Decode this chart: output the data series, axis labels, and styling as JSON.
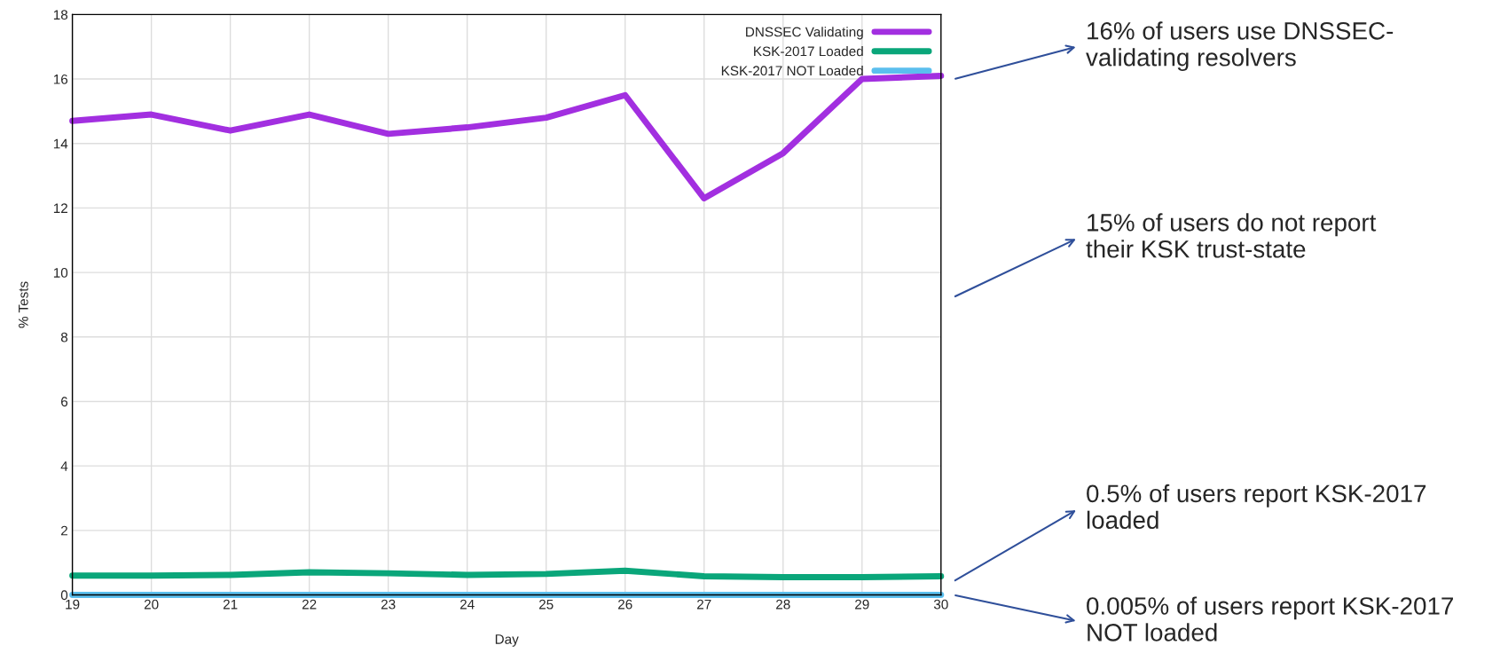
{
  "chart_data": {
    "type": "line",
    "xlabel": "Day",
    "ylabel": "% Tests",
    "x": [
      19,
      20,
      21,
      22,
      23,
      24,
      25,
      26,
      27,
      28,
      29,
      30
    ],
    "series": [
      {
        "name": "DNSSEC Validating",
        "color": "#a22fe0",
        "values": [
          14.7,
          14.9,
          14.4,
          14.9,
          14.3,
          14.5,
          14.8,
          15.5,
          12.3,
          13.7,
          16.0,
          16.1
        ]
      },
      {
        "name": "KSK-2017 Loaded",
        "color": "#0aa67a",
        "values": [
          0.6,
          0.6,
          0.62,
          0.7,
          0.67,
          0.62,
          0.65,
          0.75,
          0.58,
          0.55,
          0.55,
          0.58
        ]
      },
      {
        "name": "KSK-2017 NOT Loaded",
        "color": "#5bbfee",
        "values": [
          0,
          0,
          0,
          0,
          0,
          0,
          0,
          0,
          0,
          0,
          0,
          0
        ]
      }
    ],
    "xlim": [
      19,
      30
    ],
    "ylim": [
      0,
      18
    ],
    "xticks": [
      19,
      20,
      21,
      22,
      23,
      24,
      25,
      26,
      27,
      28,
      29,
      30
    ],
    "yticks": [
      0,
      2,
      4,
      6,
      8,
      10,
      12,
      14,
      16,
      18
    ],
    "grid": true,
    "legend": "top right",
    "marker": "none",
    "line_style": "solid",
    "annotations": [
      "16% of users use DNSSEC-\nvalidating resolvers",
      "15% of users do not report\ntheir KSK trust-state",
      "0.5% of users report KSK-2017\nloaded",
      "0.005% of users report KSK-2017\nNOT loaded"
    ]
  }
}
